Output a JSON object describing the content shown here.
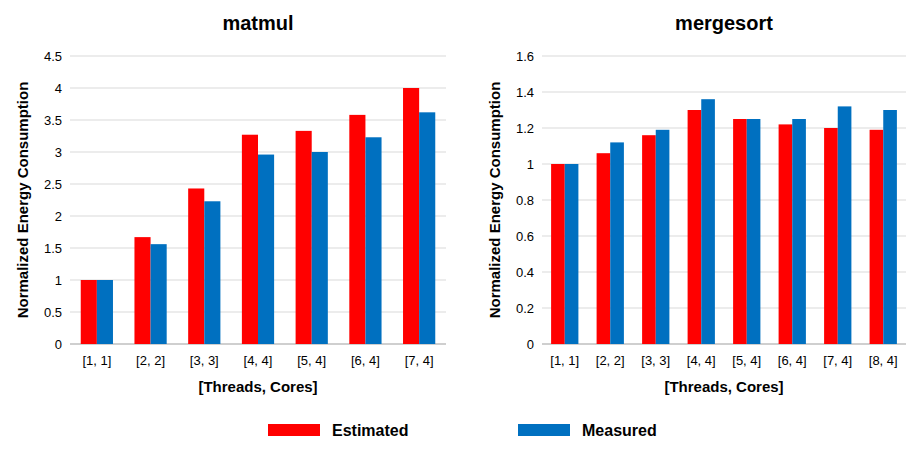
{
  "chart_data": [
    {
      "type": "bar",
      "title": "matmul",
      "x_label": "[Threads, Cores]",
      "y_label": "Normalized Energy Consumption",
      "categories": [
        "[1, 1]",
        "[2, 2]",
        "[3, 3]",
        "[4, 4]",
        "[5, 4]",
        "[6, 4]",
        "[7, 4]"
      ],
      "series": [
        {
          "name": "Estimated",
          "color": "#ff0000",
          "values": [
            1,
            1.67,
            2.43,
            3.27,
            3.33,
            3.58,
            4.0
          ]
        },
        {
          "name": "Measured",
          "color": "#0070c0",
          "values": [
            1,
            1.56,
            2.23,
            2.96,
            3.0,
            3.23,
            3.62
          ]
        }
      ],
      "ylim": [
        0,
        4.5
      ],
      "yticks": [
        0,
        0.5,
        1,
        1.5,
        2,
        2.5,
        3,
        3.5,
        4,
        4.5
      ],
      "grid": true,
      "legend": "bottom"
    },
    {
      "type": "bar",
      "title": "mergesort",
      "x_label": "[Threads, Cores]",
      "y_label": "Normalized Energy Consumption",
      "categories": [
        "[1, 1]",
        "[2, 2]",
        "[3, 3]",
        "[4, 4]",
        "[5, 4]",
        "[6, 4]",
        "[7, 4]",
        "[8, 4]"
      ],
      "series": [
        {
          "name": "Estimated",
          "color": "#ff0000",
          "values": [
            1,
            1.06,
            1.16,
            1.3,
            1.25,
            1.22,
            1.2,
            1.19
          ]
        },
        {
          "name": "Measured",
          "color": "#0070c0",
          "values": [
            1,
            1.12,
            1.19,
            1.36,
            1.25,
            1.25,
            1.32,
            1.3
          ]
        }
      ],
      "ylim": [
        0,
        1.6
      ],
      "yticks": [
        0,
        0.2,
        0.4,
        0.6,
        0.8,
        1,
        1.2,
        1.4,
        1.6
      ],
      "grid": true
    }
  ]
}
